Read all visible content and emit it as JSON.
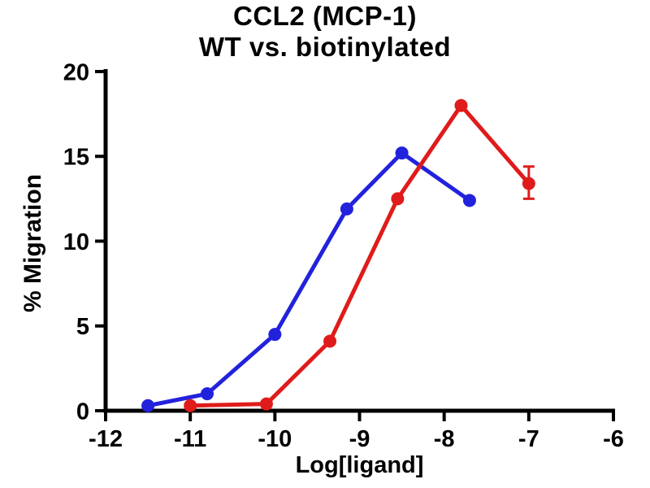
{
  "chart_data": {
    "type": "line",
    "title_lines": [
      "CCL2 (MCP-1)",
      "WT vs. biotinylated"
    ],
    "xlabel": "Log[ligand]",
    "ylabel": "% Migration",
    "xlim": [
      -12,
      -6
    ],
    "ylim": [
      0,
      20
    ],
    "x_ticks": [
      -12,
      -11,
      -10,
      -9,
      -8,
      -7,
      -6
    ],
    "y_ticks": [
      0,
      5,
      10,
      15,
      20
    ],
    "grid": false,
    "legend": "none",
    "axis_color": "#000000",
    "background_color": "#ffffff",
    "series": [
      {
        "name": "WT",
        "color": "#2222dd",
        "x": [
          -11.5,
          -10.8,
          -10.0,
          -9.15,
          -8.5,
          -7.7
        ],
        "y": [
          0.3,
          1.0,
          4.5,
          11.9,
          15.2,
          12.4
        ],
        "error_bars": []
      },
      {
        "name": "biotinylated",
        "color": "#e01b1b",
        "x": [
          -11.0,
          -10.1,
          -9.35,
          -8.55,
          -7.8,
          -7.0
        ],
        "y": [
          0.3,
          0.4,
          4.1,
          12.5,
          18.0,
          13.4
        ],
        "error_bars": [
          {
            "x": -7.0,
            "y": 13.4,
            "plus": 1.0,
            "minus": 0.9
          }
        ]
      }
    ]
  }
}
